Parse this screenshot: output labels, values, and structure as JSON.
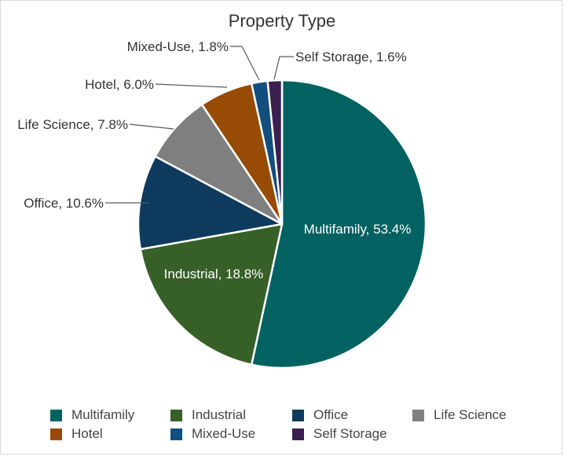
{
  "chart_data": {
    "type": "pie",
    "title": "Property Type",
    "slices": [
      {
        "label": "Multifamily",
        "value": 53.4,
        "data_label": "Multifamily, 53.4%",
        "color": "#016261",
        "label_color": "#ffffff"
      },
      {
        "label": "Industrial",
        "value": 18.8,
        "data_label": "Industrial, 18.8%",
        "color": "#376028",
        "label_color": "#ffffff"
      },
      {
        "label": "Office",
        "value": 10.6,
        "data_label": "Office, 10.6%",
        "color": "#0e3a5e",
        "label_color": "#333333"
      },
      {
        "label": "Life Science",
        "value": 7.8,
        "data_label": "Life Science, 7.8%",
        "color": "#7f7f7f",
        "label_color": "#333333"
      },
      {
        "label": "Hotel",
        "value": 6.0,
        "data_label": "Hotel, 6.0%",
        "color": "#974b05",
        "label_color": "#333333"
      },
      {
        "label": "Mixed-Use",
        "value": 1.8,
        "data_label": "Mixed-Use, 1.8%",
        "color": "#124e7e",
        "label_color": "#333333"
      },
      {
        "label": "Self Storage",
        "value": 1.6,
        "data_label": "Self Storage, 1.6%",
        "color": "#3a1f4f",
        "label_color": "#333333"
      }
    ],
    "legend_position": "bottom"
  }
}
